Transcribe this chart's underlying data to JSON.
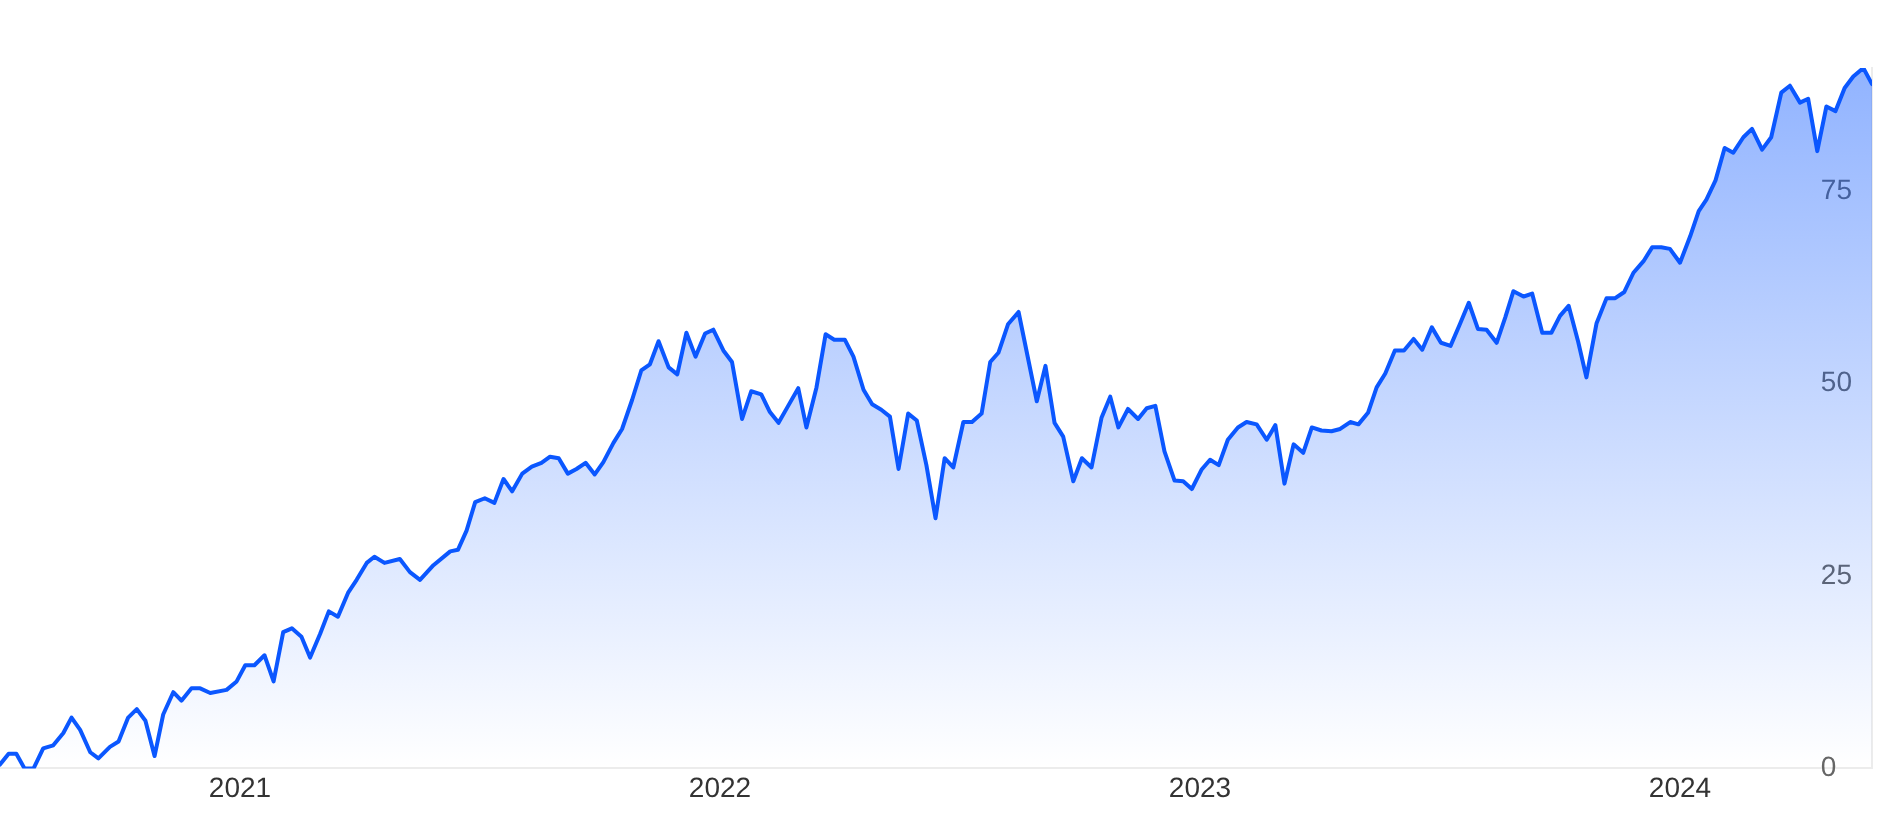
{
  "chart_data": {
    "type": "area",
    "color": "#0b57ff",
    "x": [
      2020.5,
      2020.518,
      2020.534,
      2020.551,
      2020.57,
      2020.59,
      2020.611,
      2020.632,
      2020.649,
      2020.667,
      2020.688,
      2020.705,
      2020.729,
      2020.747,
      2020.767,
      2020.785,
      2020.803,
      2020.822,
      2020.84,
      2020.861,
      2020.878,
      2020.899,
      2020.917,
      2020.938,
      2020.972,
      2020.993,
      2021.011,
      2021.03,
      2021.051,
      2021.07,
      2021.09,
      2021.108,
      2021.128,
      2021.146,
      2021.167,
      2021.185,
      2021.204,
      2021.225,
      2021.243,
      2021.264,
      2021.28,
      2021.301,
      2021.333,
      2021.354,
      2021.375,
      2021.403,
      2021.438,
      2021.454,
      2021.472,
      2021.49,
      2021.51,
      2021.53,
      2021.549,
      2021.567,
      2021.588,
      2021.608,
      2021.628,
      2021.646,
      2021.664,
      2021.683,
      2021.701,
      2021.72,
      2021.739,
      2021.757,
      2021.778,
      2021.796,
      2021.817,
      2021.836,
      2021.854,
      2021.872,
      2021.893,
      2021.911,
      2021.93,
      2021.949,
      2021.969,
      2021.986,
      2022.007,
      2022.025,
      2022.046,
      2022.065,
      2022.086,
      2022.104,
      2022.122,
      2022.142,
      2022.163,
      2022.18,
      2022.201,
      2022.22,
      2022.238,
      2022.26,
      2022.278,
      2022.299,
      2022.317,
      2022.336,
      2022.354,
      2022.372,
      2022.392,
      2022.41,
      2022.43,
      2022.449,
      2022.468,
      2022.486,
      2022.507,
      2022.525,
      2022.545,
      2022.563,
      2022.58,
      2022.6,
      2022.622,
      2022.66,
      2022.678,
      2022.697,
      2022.715,
      2022.736,
      2022.754,
      2022.774,
      2022.795,
      2022.813,
      2022.83,
      2022.85,
      2022.871,
      2022.889,
      2022.907,
      2022.926,
      2022.947,
      2022.965,
      2022.983,
      2023.003,
      2023.021,
      2023.039,
      2023.058,
      2023.079,
      2023.097,
      2023.118,
      2023.139,
      2023.157,
      2023.176,
      2023.195,
      2023.215,
      2023.233,
      2023.253,
      2023.274,
      2023.292,
      2023.313,
      2023.33,
      2023.35,
      2023.368,
      2023.386,
      2023.406,
      2023.425,
      2023.445,
      2023.463,
      2023.483,
      2023.502,
      2023.522,
      2023.542,
      2023.56,
      2023.579,
      2023.597,
      2023.618,
      2023.636,
      2023.653,
      2023.674,
      2023.692,
      2023.713,
      2023.732,
      2023.75,
      2023.768,
      2023.788,
      2023.805,
      2023.826,
      2023.847,
      2023.865,
      2023.884,
      2023.903,
      2023.924,
      2023.942,
      2023.961,
      2023.979,
      2024.0,
      2024.021,
      2024.039,
      2024.055,
      2024.074,
      2024.093,
      2024.111,
      2024.132,
      2024.15,
      2024.171,
      2024.19,
      2024.211,
      2024.229,
      2024.25,
      2024.267,
      2024.286,
      2024.305,
      2024.324,
      2024.343,
      2024.361,
      2024.382,
      2024.4
    ],
    "values": [
      0.5,
      1.9,
      1.9,
      0,
      0,
      2.6,
      3.0,
      4.6,
      6.6,
      5.0,
      2.1,
      1.3,
      2.8,
      3.5,
      6.6,
      7.7,
      6.2,
      1.6,
      7.0,
      9.9,
      8.8,
      10.4,
      10.4,
      9.8,
      10.2,
      11.3,
      13.4,
      13.4,
      14.7,
      11.3,
      17.7,
      18.2,
      17.1,
      14.4,
      17.5,
      20.4,
      19.7,
      22.8,
      24.5,
      26.7,
      27.5,
      26.7,
      27.2,
      25.5,
      24.5,
      26.4,
      28.2,
      28.4,
      30.9,
      34.6,
      35.1,
      34.5,
      37.6,
      36.0,
      38.3,
      39.2,
      39.7,
      40.5,
      40.3,
      38.3,
      38.9,
      39.7,
      38.2,
      39.8,
      42.3,
      44.1,
      47.9,
      51.7,
      52.5,
      55.5,
      52.1,
      51.2,
      56.6,
      53.5,
      56.5,
      57.0,
      54.3,
      52.8,
      45.4,
      49.0,
      48.6,
      46.3,
      44.9,
      47.1,
      49.4,
      44.3,
      49.5,
      56.4,
      55.7,
      55.7,
      53.5,
      49.2,
      47.3,
      46.6,
      45.7,
      38.9,
      46.1,
      45.2,
      39.4,
      32.5,
      40.3,
      39.1,
      45.0,
      45.0,
      46.1,
      52.8,
      54.0,
      57.7,
      59.3,
      47.7,
      52.3,
      44.9,
      43.1,
      37.3,
      40.3,
      39.1,
      45.6,
      48.3,
      44.3,
      46.7,
      45.4,
      46.8,
      47.1,
      41.2,
      37.4,
      37.3,
      36.3,
      38.8,
      40.1,
      39.4,
      42.7,
      44.3,
      45.0,
      44.7,
      42.7,
      44.6,
      37.0,
      42.1,
      41.0,
      44.3,
      43.9,
      43.8,
      44.1,
      45.0,
      44.7,
      46.2,
      49.5,
      51.3,
      54.3,
      54.3,
      55.8,
      54.4,
      57.3,
      55.3,
      54.9,
      57.8,
      60.5,
      57.1,
      57.0,
      55.3,
      58.6,
      62.0,
      61.3,
      61.7,
      56.6,
      56.6,
      58.8,
      60.1,
      55.4,
      50.8,
      57.8,
      61.1,
      61.1,
      61.9,
      64.4,
      65.9,
      67.7,
      67.7,
      67.5,
      65.7,
      69.1,
      72.4,
      73.9,
      76.4,
      80.6,
      80.0,
      82.0,
      83.1,
      80.4,
      82.0,
      87.8,
      88.7,
      86.5,
      87.0,
      80.2,
      86.0,
      85.4,
      88.4,
      89.9,
      91.0,
      88.9
    ],
    "xlim": [
      2020.5,
      2024.4
    ],
    "xticks": [
      2021,
      2022,
      2023,
      2024
    ],
    "ylim": [
      0,
      91
    ],
    "yticks": [
      0,
      25,
      50,
      75
    ]
  }
}
